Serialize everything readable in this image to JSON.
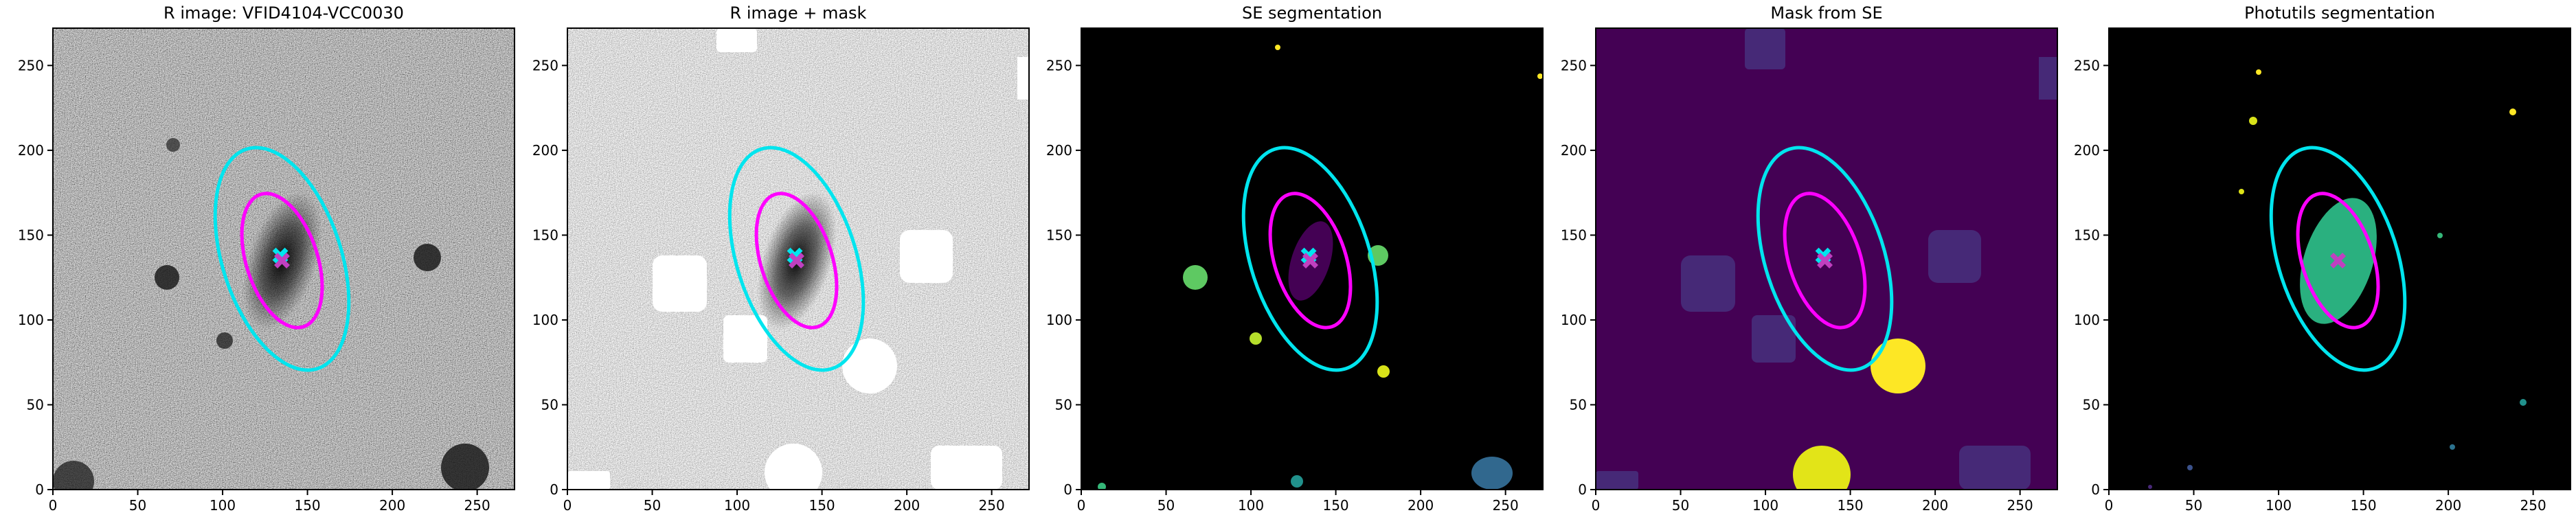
{
  "chart_data": [
    {
      "type": "image",
      "title": "R image: VFID4104-VCC0030",
      "xlim": [
        0,
        272
      ],
      "ylim": [
        0,
        272
      ],
      "xticks": [
        0,
        50,
        100,
        150,
        200,
        250
      ],
      "yticks": [
        0,
        50,
        100,
        150,
        200,
        250
      ],
      "ellipses": [
        {
          "color": "#00e5ee",
          "cx": 135,
          "cy": 136,
          "a": 68,
          "b": 35,
          "angle": 108
        },
        {
          "color": "#ff00ff",
          "cx": 135,
          "cy": 135,
          "a": 41,
          "b": 21,
          "angle": 108
        }
      ],
      "markers": [
        {
          "color": "#00e5ee",
          "x": 134,
          "y": 138
        },
        {
          "color": "#c040c0",
          "x": 135,
          "y": 135
        }
      ]
    },
    {
      "type": "image",
      "title": "R image + mask",
      "xlim": [
        0,
        272
      ],
      "ylim": [
        0,
        272
      ],
      "xticks": [
        0,
        50,
        100,
        150,
        200,
        250
      ],
      "yticks": [
        0,
        50,
        100,
        150,
        200,
        250
      ],
      "ellipses": [
        {
          "color": "#00e5ee",
          "cx": 135,
          "cy": 136,
          "a": 68,
          "b": 35,
          "angle": 108
        },
        {
          "color": "#ff00ff",
          "cx": 135,
          "cy": 135,
          "a": 41,
          "b": 21,
          "angle": 108
        }
      ],
      "markers": [
        {
          "color": "#00e5ee",
          "x": 134,
          "y": 138
        },
        {
          "color": "#c040c0",
          "x": 135,
          "y": 135
        }
      ]
    },
    {
      "type": "image",
      "title": "SE segmentation",
      "xlim": [
        0,
        272
      ],
      "ylim": [
        0,
        272
      ],
      "xticks": [
        0,
        50,
        100,
        150,
        200,
        250
      ],
      "yticks": [
        0,
        50,
        100,
        150,
        200,
        250
      ],
      "ellipses": [
        {
          "color": "#00e5ee",
          "cx": 135,
          "cy": 136,
          "a": 68,
          "b": 35,
          "angle": 108
        },
        {
          "color": "#ff00ff",
          "cx": 135,
          "cy": 135,
          "a": 41,
          "b": 21,
          "angle": 108
        }
      ],
      "markers": [
        {
          "color": "#00e5ee",
          "x": 134,
          "y": 138
        },
        {
          "color": "#c040c0",
          "x": 135,
          "y": 135
        }
      ]
    },
    {
      "type": "image",
      "title": "Mask from SE",
      "xlim": [
        0,
        272
      ],
      "ylim": [
        0,
        272
      ],
      "xticks": [
        0,
        50,
        100,
        150,
        200,
        250
      ],
      "yticks": [
        0,
        50,
        100,
        150,
        200,
        250
      ],
      "ellipses": [
        {
          "color": "#00e5ee",
          "cx": 135,
          "cy": 136,
          "a": 68,
          "b": 35,
          "angle": 108
        },
        {
          "color": "#ff00ff",
          "cx": 135,
          "cy": 135,
          "a": 41,
          "b": 21,
          "angle": 108
        }
      ],
      "markers": [
        {
          "color": "#00e5ee",
          "x": 134,
          "y": 138
        },
        {
          "color": "#c040c0",
          "x": 135,
          "y": 135
        }
      ]
    },
    {
      "type": "image",
      "title": "Photutils segmentation",
      "xlim": [
        0,
        272
      ],
      "ylim": [
        0,
        272
      ],
      "xticks": [
        0,
        50,
        100,
        150,
        200,
        250
      ],
      "yticks": [
        0,
        50,
        100,
        150,
        200,
        250
      ],
      "ellipses": [
        {
          "color": "#00e5ee",
          "cx": 135,
          "cy": 136,
          "a": 68,
          "b": 35,
          "angle": 108
        },
        {
          "color": "#ff00ff",
          "cx": 135,
          "cy": 135,
          "a": 41,
          "b": 21,
          "angle": 108
        }
      ],
      "markers": [
        {
          "color": "#c040c0",
          "x": 135,
          "y": 135
        }
      ]
    }
  ]
}
